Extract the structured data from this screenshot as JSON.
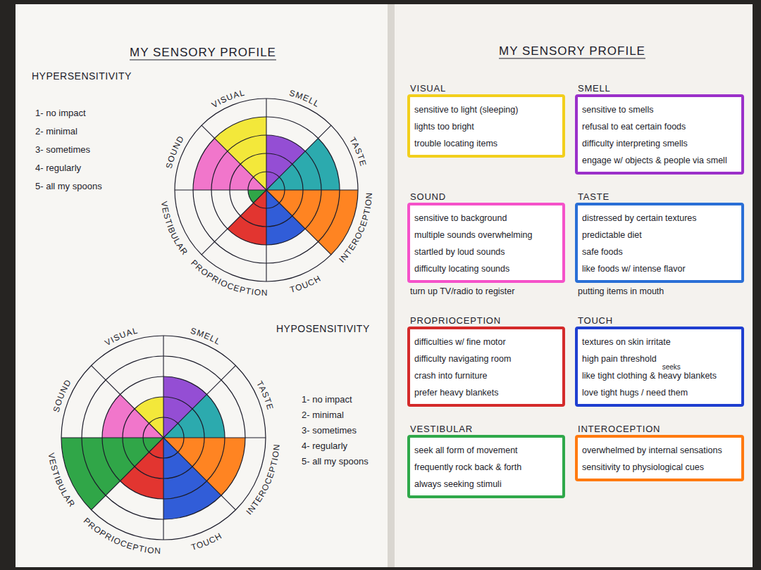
{
  "pages": [
    {
      "title": "MY SENSORY PROFILE"
    },
    {
      "title": "MY SENSORY PROFILE",
      "boxes": [
        {
          "heading": "VISUAL",
          "color": "#f2cf1c",
          "items": [
            "sensitive to light (sleeping)",
            "lights too bright",
            "trouble locating items"
          ]
        },
        {
          "heading": "SMELL",
          "color": "#9b30c9",
          "items": [
            "sensitive to smells",
            "refusal to eat certain foods",
            "difficulty interpreting smells",
            "engage w/ objects & people via smell"
          ]
        },
        {
          "heading": "SOUND",
          "color": "#f552c9",
          "items": [
            "sensitive to background",
            "multiple sounds overwhelming",
            "startled by loud sounds",
            "difficulty locating sounds"
          ],
          "extra": "turn up TV/radio to register"
        },
        {
          "heading": "TASTE",
          "color": "#2a6fd6",
          "items": [
            "distressed by certain textures",
            "predictable diet",
            "safe foods",
            "like foods w/ intense flavor"
          ],
          "extra": "putting items in mouth"
        },
        {
          "heading": "PROPRIOCEPTION",
          "color": "#d42a2a",
          "items": [
            "difficulties w/ fine motor",
            "difficulty navigating room",
            "crash into furniture",
            "prefer heavy blankets"
          ]
        },
        {
          "heading": "TOUCH",
          "color": "#1f3fd0",
          "items": [
            "textures on skin irritate",
            "high pain threshold",
            "like tight clothing & heavy blankets",
            "love tight hugs / need them"
          ],
          "insertion": "seeks"
        },
        {
          "heading": "VESTIBULAR",
          "color": "#2fa84a",
          "items": [
            "seek all form of movement",
            "frequently rock back & forth",
            "always seeking stimuli"
          ]
        },
        {
          "heading": "INTEROCEPTION",
          "color": "#ff7a10",
          "items": [
            "overwhelmed by internal sensations",
            "sensitivity to physiological cues"
          ]
        }
      ]
    }
  ],
  "chart_data": [
    {
      "type": "polar_area",
      "title": "HYPERSENSITIVITY",
      "categories": [
        "VISUAL",
        "SMELL",
        "TASTE",
        "INTEROCEPTION",
        "TOUCH",
        "PROPRIOCEPTION",
        "VESTIBULAR",
        "SOUND"
      ],
      "values": [
        4,
        3,
        4,
        5,
        3,
        3,
        1,
        4
      ],
      "colors": [
        "#f2e62a",
        "#8b3fd1",
        "#1aa3a8",
        "#ff7a10",
        "#1f4fd6",
        "#e0241f",
        "#1e9e3a",
        "#f06ac8"
      ],
      "ylim": [
        0,
        5
      ],
      "yticks": [
        1,
        2,
        3,
        4,
        5
      ],
      "tick_labels": false,
      "grid": true,
      "annotations": [
        "1- no impact",
        "2- minimal",
        "3- sometimes",
        "4- regularly",
        "5- all my spoons"
      ]
    },
    {
      "type": "polar_area",
      "title": "HYPOSENSITIVITY",
      "categories": [
        "VISUAL",
        "SMELL",
        "TASTE",
        "INTEROCEPTION",
        "TOUCH",
        "PROPRIOCEPTION",
        "VESTIBULAR",
        "SOUND"
      ],
      "values": [
        2,
        3,
        3,
        4,
        4,
        3,
        5,
        3
      ],
      "colors": [
        "#f2e62a",
        "#8b3fd1",
        "#1aa3a8",
        "#ff7a10",
        "#1f4fd6",
        "#e0241f",
        "#1e9e3a",
        "#f06ac8"
      ],
      "ylim": [
        0,
        5
      ],
      "yticks": [
        1,
        2,
        3,
        4,
        5
      ],
      "tick_labels": false,
      "grid": true,
      "annotations": [
        "1- no impact",
        "2- minimal",
        "3- sometimes",
        "4- regularly",
        "5- all my spoons"
      ]
    }
  ]
}
